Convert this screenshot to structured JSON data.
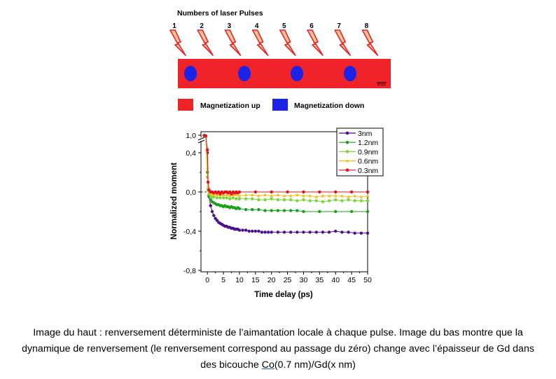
{
  "top_figure": {
    "title": "Numbers of laser Pulses",
    "pulse_labels": [
      "1",
      "2",
      "3",
      "4",
      "5",
      "6",
      "7",
      "8"
    ],
    "scale_bar": "20 µm",
    "legend": [
      {
        "label": "Magnetization up",
        "color": "#f0222a"
      },
      {
        "label": "Magnetization down",
        "color": "#1b23e6"
      }
    ],
    "colors": {
      "strip": "#f0222a",
      "domain": "#1b23e6",
      "bolt_fill": "#f4c596",
      "bolt_stroke": "#e8232a"
    }
  },
  "chart_data": {
    "type": "line",
    "title": "",
    "xlabel": "Time delay (ps)",
    "ylabel": "Normalized moment",
    "xlim": [
      -2,
      50
    ],
    "x_ticks": [
      0,
      5,
      10,
      15,
      20,
      25,
      30,
      35,
      40,
      45,
      50
    ],
    "y_ticks": [
      {
        "value": -0.8,
        "label": "-0,8"
      },
      {
        "value": -0.4,
        "label": "-0,4"
      },
      {
        "value": 0.0,
        "label": "0,0"
      },
      {
        "value": 0.4,
        "label": "0,4"
      },
      {
        "value": 1.0,
        "label": "1,0"
      }
    ],
    "y_axis_break": {
      "between": [
        0.4,
        1.0
      ]
    },
    "grid": false,
    "legend_position": "top-right",
    "series": [
      {
        "name": "3nm",
        "color": "#4b0f8f",
        "marker": "circle",
        "x": [
          -1,
          -0.5,
          0,
          0.2,
          0.5,
          1,
          1.5,
          2,
          2.5,
          3,
          3.5,
          4,
          4.5,
          5,
          5.5,
          6,
          6.5,
          7,
          7.5,
          8,
          8.5,
          9,
          9.5,
          10,
          11,
          12,
          13,
          14,
          15,
          16,
          17,
          18,
          19,
          20,
          22,
          24,
          26,
          28,
          30,
          32,
          34,
          36,
          38,
          40,
          42,
          44,
          46,
          48,
          50
        ],
        "y": [
          1.0,
          0.98,
          0.4,
          0.1,
          -0.04,
          -0.14,
          -0.2,
          -0.24,
          -0.27,
          -0.29,
          -0.31,
          -0.32,
          -0.33,
          -0.34,
          -0.35,
          -0.35,
          -0.36,
          -0.36,
          -0.37,
          -0.37,
          -0.38,
          -0.38,
          -0.38,
          -0.39,
          -0.39,
          -0.39,
          -0.4,
          -0.4,
          -0.4,
          -0.4,
          -0.41,
          -0.41,
          -0.41,
          -0.41,
          -0.41,
          -0.41,
          -0.41,
          -0.41,
          -0.41,
          -0.41,
          -0.41,
          -0.41,
          -0.41,
          -0.4,
          -0.41,
          -0.41,
          -0.42,
          -0.42,
          -0.42
        ]
      },
      {
        "name": "1.2nm",
        "color": "#1aa01a",
        "marker": "circle",
        "x": [
          -1,
          -0.5,
          0,
          0.2,
          0.5,
          1,
          1.5,
          2,
          2.5,
          3,
          3.5,
          4,
          4.5,
          5,
          5.5,
          6,
          6.5,
          7,
          7.5,
          8,
          8.5,
          9,
          9.5,
          10,
          12,
          14,
          16,
          18,
          20,
          22,
          24,
          26,
          28,
          30,
          35,
          40,
          45,
          50
        ],
        "y": [
          1.0,
          0.97,
          0.2,
          0.02,
          -0.05,
          -0.08,
          -0.1,
          -0.11,
          -0.12,
          -0.13,
          -0.13,
          -0.14,
          -0.14,
          -0.15,
          -0.14,
          -0.15,
          -0.15,
          -0.16,
          -0.15,
          -0.16,
          -0.16,
          -0.17,
          -0.16,
          -0.17,
          -0.18,
          -0.18,
          -0.18,
          -0.19,
          -0.19,
          -0.19,
          -0.19,
          -0.19,
          -0.19,
          -0.2,
          -0.2,
          -0.2,
          -0.2,
          -0.2
        ]
      },
      {
        "name": "0.9nm",
        "color": "#7fd43a",
        "marker": "circle",
        "x": [
          -1,
          -0.5,
          0,
          0.2,
          0.5,
          1,
          1.5,
          2,
          3,
          4,
          5,
          6,
          7,
          8,
          9,
          10,
          12,
          14,
          16,
          18,
          20,
          22,
          24,
          26,
          28,
          30,
          32,
          34,
          36,
          38,
          40,
          42,
          44,
          46,
          48,
          50
        ],
        "y": [
          1.0,
          0.96,
          0.15,
          0.02,
          -0.02,
          -0.04,
          -0.05,
          -0.05,
          -0.06,
          -0.06,
          -0.06,
          -0.06,
          -0.07,
          -0.06,
          -0.07,
          -0.07,
          -0.07,
          -0.07,
          -0.08,
          -0.08,
          -0.07,
          -0.08,
          -0.08,
          -0.08,
          -0.09,
          -0.08,
          -0.09,
          -0.09,
          -0.1,
          -0.09,
          -0.08,
          -0.09,
          -0.08,
          -0.09,
          -0.09,
          -0.09
        ]
      },
      {
        "name": "0.6nm",
        "color": "#f2c21a",
        "marker": "triangle",
        "x": [
          -1,
          -0.5,
          0,
          0.2,
          0.5,
          1,
          1.5,
          2,
          3,
          4,
          5,
          6,
          7,
          8,
          9,
          10,
          12,
          14,
          16,
          18,
          20,
          22,
          24,
          26,
          28,
          30,
          32,
          34,
          36,
          38,
          40,
          42,
          44,
          46,
          48,
          50
        ],
        "y": [
          1.0,
          0.97,
          0.25,
          0.05,
          0.01,
          -0.02,
          -0.03,
          -0.03,
          -0.03,
          -0.03,
          -0.03,
          -0.03,
          -0.04,
          -0.03,
          -0.03,
          -0.04,
          -0.03,
          -0.03,
          -0.04,
          -0.03,
          -0.04,
          -0.03,
          -0.04,
          -0.04,
          -0.03,
          -0.04,
          -0.04,
          -0.05,
          -0.04,
          -0.04,
          -0.04,
          -0.04,
          -0.05,
          -0.04,
          -0.05,
          -0.04
        ]
      },
      {
        "name": "0.3nm",
        "color": "#e8101a",
        "marker": "circle",
        "x": [
          -1,
          -0.5,
          0,
          0.2,
          0.5,
          1,
          1.5,
          2,
          2.5,
          3,
          3.5,
          4,
          4.5,
          5,
          5.5,
          6,
          6.5,
          7,
          7.5,
          8,
          8.5,
          9,
          9.5,
          10,
          15,
          20,
          25,
          30,
          35,
          40,
          45,
          50
        ],
        "y": [
          0.99,
          0.97,
          0.5,
          0.1,
          0.02,
          0.0,
          0.0,
          -0.01,
          0.0,
          -0.01,
          0.0,
          -0.02,
          0.0,
          -0.01,
          0.0,
          0.0,
          -0.01,
          0.0,
          -0.02,
          0.0,
          -0.01,
          0.0,
          -0.01,
          0.0,
          0.0,
          0.0,
          0.0,
          0.0,
          0.0,
          0.0,
          0.0,
          0.0
        ]
      }
    ]
  },
  "caption": {
    "part1": "Image du haut : renversement déterministe de l’aimantation locale à chaque pulse. Image du bas montre que la dynamique de renversement (le renversement correspond au passage du zéro) change avec l’épaisseur de Gd dans des bicouche ",
    "co": "Co",
    "part2": "(0.7 nm)/Gd(x nm)"
  }
}
